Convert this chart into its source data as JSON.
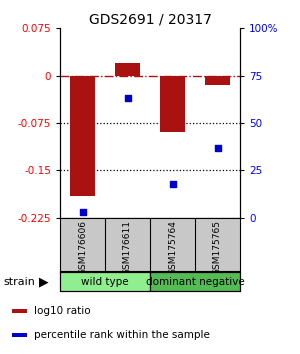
{
  "title": "GDS2691 / 20317",
  "samples": [
    "GSM176606",
    "GSM176611",
    "GSM175764",
    "GSM175765"
  ],
  "log10_ratio": [
    -0.19,
    0.02,
    -0.09,
    -0.015
  ],
  "percentile_rank": [
    3,
    63,
    18,
    37
  ],
  "groups": [
    {
      "name": "wild type",
      "indices": [
        0,
        1
      ],
      "color": "#90ee90"
    },
    {
      "name": "dominant negative",
      "indices": [
        2,
        3
      ],
      "color": "#66cc66"
    }
  ],
  "bar_color": "#aa1111",
  "dot_color": "#0000cc",
  "ylim_left": [
    -0.225,
    0.075
  ],
  "ylim_right": [
    0,
    100
  ],
  "yticks_left": [
    0.075,
    0,
    -0.075,
    -0.15,
    -0.225
  ],
  "yticks_right": [
    100,
    75,
    50,
    25,
    0
  ],
  "ytick_right_labels": [
    "100%",
    "75",
    "50",
    "25",
    "0"
  ],
  "bar_width": 0.55,
  "legend_items": [
    {
      "label": "log10 ratio",
      "color": "#aa1111"
    },
    {
      "label": "percentile rank within the sample",
      "color": "#0000cc"
    }
  ],
  "sample_box_color": "#c8c8c8",
  "group_box_colors": [
    "#90ee90",
    "#55bb55"
  ],
  "title_fontsize": 10,
  "tick_fontsize": 7.5,
  "sample_fontsize": 6.5,
  "group_fontsize": 7.5,
  "legend_fontsize": 7.5
}
